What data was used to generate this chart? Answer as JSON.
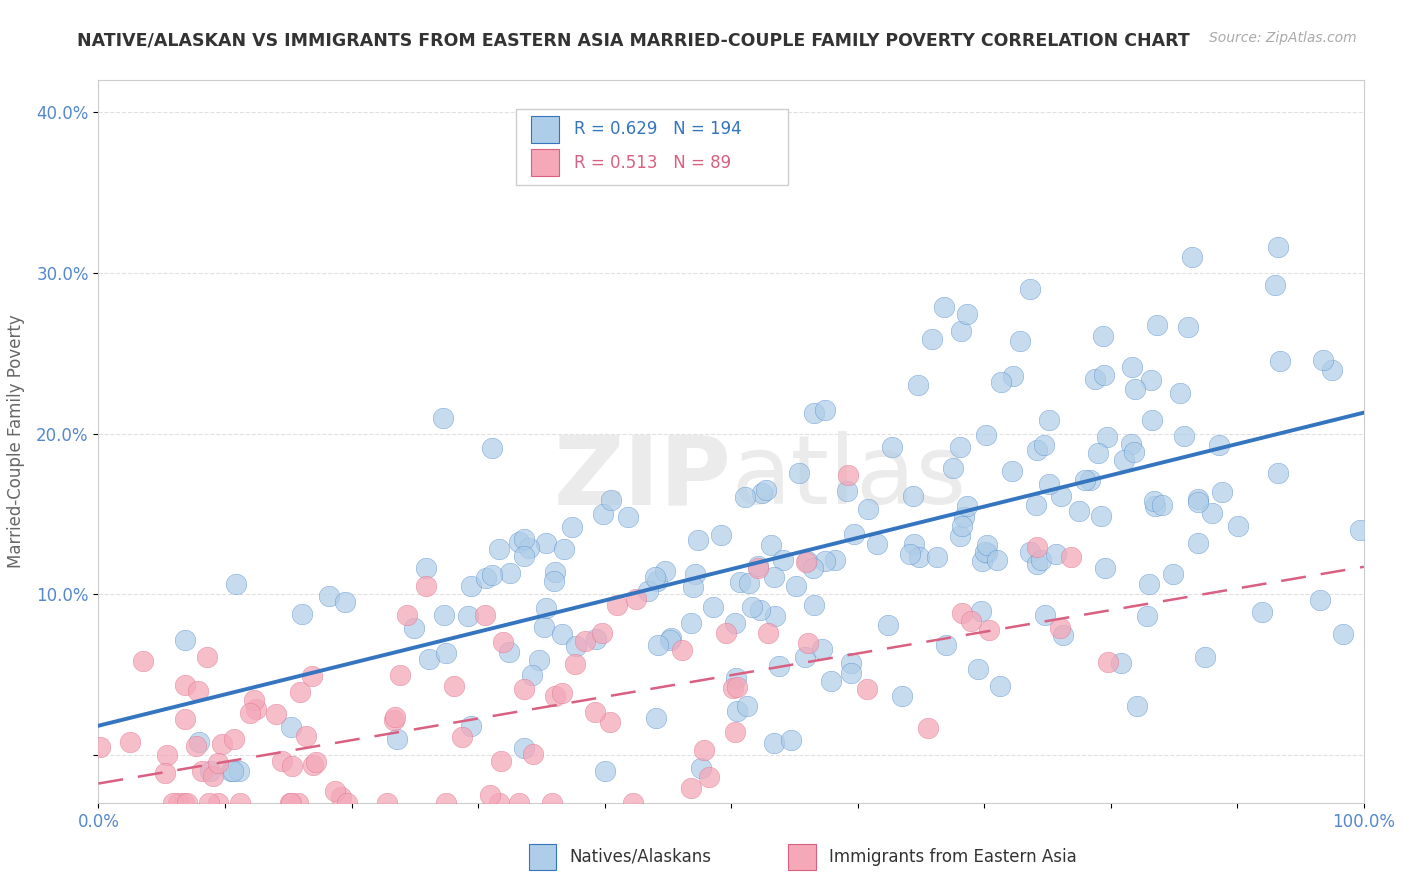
{
  "title": "NATIVE/ALASKAN VS IMMIGRANTS FROM EASTERN ASIA MARRIED-COUPLE FAMILY POVERTY CORRELATION CHART",
  "source_text": "Source: ZipAtlas.com",
  "ylabel": "Married-Couple Family Poverty",
  "xlim": [
    0,
    1.0
  ],
  "ylim": [
    -0.03,
    0.42
  ],
  "xticks": [
    0.0,
    0.1,
    0.2,
    0.3,
    0.4,
    0.5,
    0.6,
    0.7,
    0.8,
    0.9,
    1.0
  ],
  "yticks": [
    0.0,
    0.1,
    0.2,
    0.3,
    0.4
  ],
  "ytick_labels": [
    "",
    "10.0%",
    "20.0%",
    "30.0%",
    "40.0%"
  ],
  "xtick_labels": [
    "0.0%",
    "",
    "",
    "",
    "",
    "",
    "",
    "",
    "",
    "",
    "100.0%"
  ],
  "native_R": 0.629,
  "native_N": 194,
  "immigrant_R": 0.513,
  "immigrant_N": 89,
  "native_color": "#aecde8",
  "immigrant_color": "#f4a8b8",
  "native_line_color": "#3575c0",
  "immigrant_line_color": "#d96080",
  "legend_label_native": "Natives/Alaskans",
  "legend_label_immigrant": "Immigrants from Eastern Asia",
  "watermark": "ZIPatlas",
  "background_color": "#ffffff",
  "grid_color": "#dddddd",
  "title_color": "#333333",
  "axis_label_color": "#666666",
  "tick_color": "#5588cc",
  "native_slope": 0.195,
  "native_intercept": 0.018,
  "immigrant_slope": 0.135,
  "immigrant_intercept": -0.018
}
